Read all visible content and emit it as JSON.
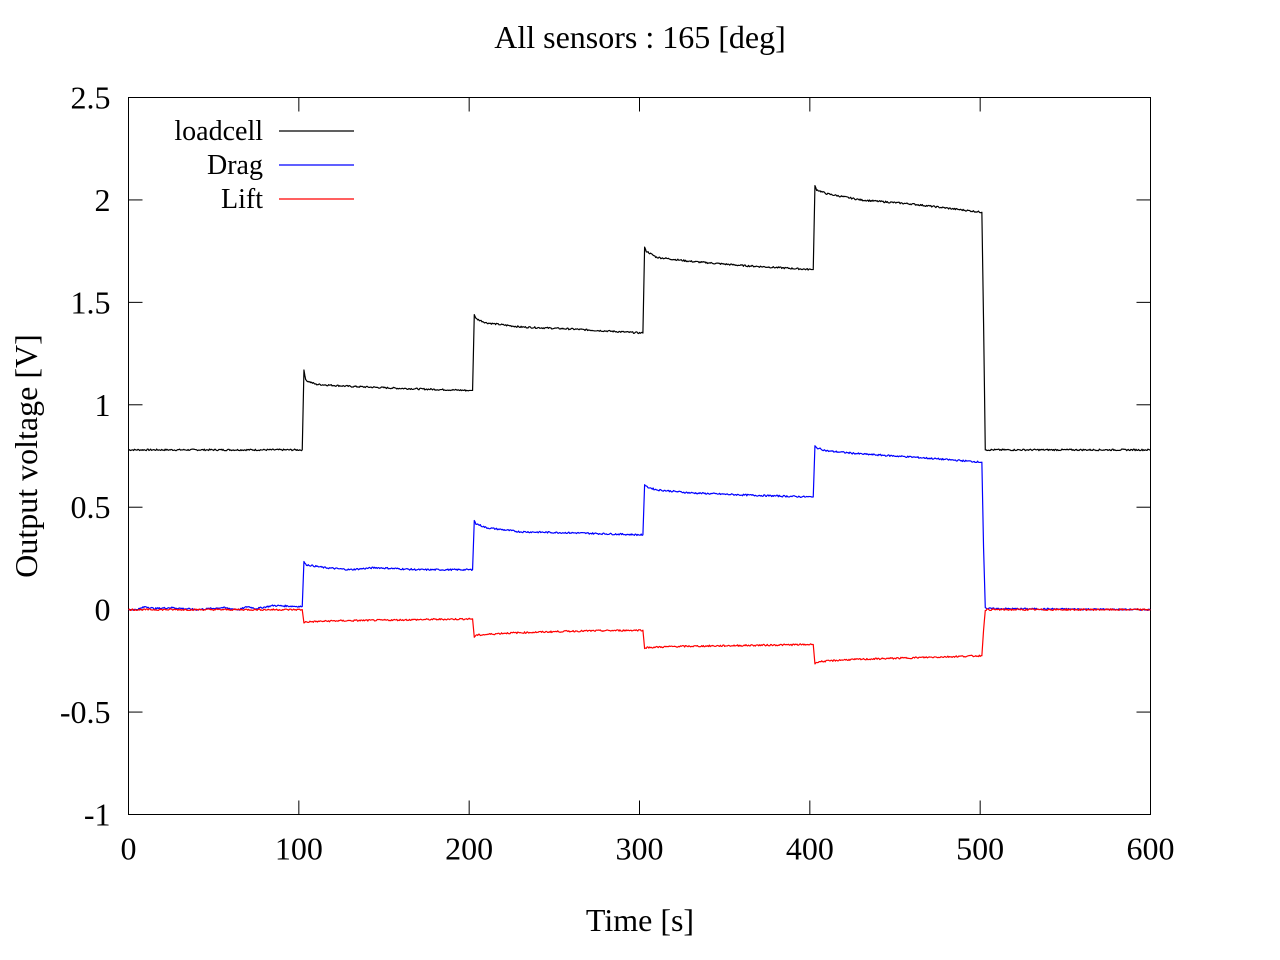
{
  "chart_data": {
    "type": "line",
    "title": "All sensors : 165 [deg]",
    "xlabel": "Time [s]",
    "ylabel": "Output voltage [V]",
    "xlim": [
      0,
      600
    ],
    "ylim": [
      -1,
      2.5
    ],
    "x_ticks": [
      "0",
      "100",
      "200",
      "300",
      "400",
      "500",
      "600"
    ],
    "y_ticks": [
      "-1",
      "-0.5",
      "0",
      "0.5",
      "1",
      "1.5",
      "2",
      "2.5"
    ],
    "grid": false,
    "legend_position": "top-left",
    "series": [
      {
        "name": "loadcell",
        "color": "#000000",
        "x": [
          0,
          102,
          103,
          104,
          110,
          130,
          160,
          200,
          202,
          203,
          204,
          210,
          230,
          260,
          302,
          303,
          304,
          310,
          330,
          360,
          401,
          402,
          403,
          404,
          410,
          430,
          460,
          501,
          502,
          503,
          504,
          600
        ],
        "y": [
          0.78,
          0.78,
          1.17,
          1.12,
          1.1,
          1.09,
          1.08,
          1.07,
          1.07,
          1.44,
          1.42,
          1.4,
          1.38,
          1.37,
          1.35,
          1.77,
          1.75,
          1.72,
          1.7,
          1.68,
          1.66,
          1.66,
          2.07,
          2.05,
          2.03,
          2.0,
          1.98,
          1.94,
          1.4,
          0.78,
          0.78,
          0.78
        ]
      },
      {
        "name": "Drag",
        "color": "#0000ff",
        "x": [
          0,
          5,
          10,
          15,
          25,
          40,
          55,
          65,
          70,
          75,
          85,
          102,
          103,
          104,
          115,
          130,
          145,
          170,
          202,
          203,
          204,
          210,
          230,
          260,
          302,
          303,
          304,
          310,
          330,
          360,
          401,
          402,
          403,
          404,
          410,
          430,
          460,
          501,
          502,
          503,
          504,
          600
        ],
        "y": [
          0.0,
          0.0,
          0.015,
          0.005,
          0.01,
          0.0,
          0.01,
          0.0,
          0.015,
          0.005,
          0.02,
          0.015,
          0.235,
          0.22,
          0.205,
          0.195,
          0.205,
          0.195,
          0.195,
          0.435,
          0.42,
          0.4,
          0.38,
          0.375,
          0.365,
          0.61,
          0.6,
          0.585,
          0.57,
          0.56,
          0.55,
          0.55,
          0.8,
          0.79,
          0.775,
          0.76,
          0.745,
          0.72,
          0.3,
          0.01,
          0.005,
          0.0
        ]
      },
      {
        "name": "Lift",
        "color": "#ff0000",
        "x": [
          0,
          102,
          103,
          104,
          120,
          160,
          202,
          203,
          204,
          220,
          260,
          302,
          303,
          304,
          320,
          360,
          401,
          402,
          403,
          404,
          420,
          460,
          501,
          502,
          503,
          600
        ],
        "y": [
          0.0,
          0.0,
          -0.065,
          -0.06,
          -0.055,
          -0.05,
          -0.045,
          -0.135,
          -0.125,
          -0.115,
          -0.105,
          -0.1,
          -0.19,
          -0.185,
          -0.18,
          -0.175,
          -0.17,
          -0.17,
          -0.265,
          -0.255,
          -0.245,
          -0.235,
          -0.225,
          -0.1,
          0.0,
          0.0
        ]
      }
    ]
  }
}
